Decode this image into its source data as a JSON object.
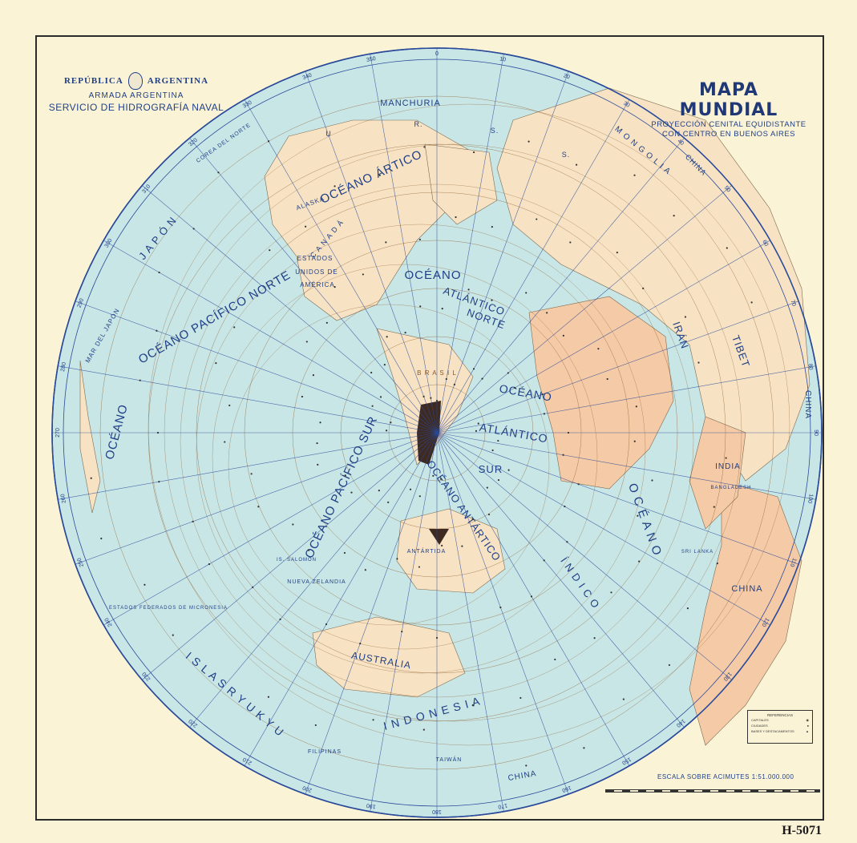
{
  "header": {
    "republica": "REPÚBLICA",
    "argentina": "ARGENTINA",
    "armada": "ARMADA ARGENTINA",
    "servicio": "SERVICIO DE HIDROGRAFÍA NAVAL"
  },
  "title": {
    "main": "MAPA MUNDIAL",
    "sub1": "PROYECCIÓN CENITAL EQUIDISTANTE",
    "sub2": "CON CENTRO EN BUENOS AIRES"
  },
  "bearings": [
    "0",
    "10",
    "20",
    "30",
    "40",
    "50",
    "60",
    "70",
    "80",
    "90",
    "100",
    "110",
    "120",
    "130",
    "140",
    "150",
    "160",
    "170",
    "180",
    "190",
    "200",
    "210",
    "220",
    "230",
    "240",
    "250",
    "260",
    "270",
    "280",
    "290",
    "300",
    "310",
    "320",
    "330",
    "340",
    "350"
  ],
  "map_labels": {
    "manchuria": "MANCHURIA",
    "urss_r": "R.",
    "urss_s1": "S.",
    "urss_s2": "S.",
    "urss_u": "U",
    "mongolia": "M O N G O L I A",
    "china_ne": "CHINA",
    "china_e": "CHINA",
    "china_se": "CHINA",
    "china_bottom": "CHINA",
    "oceano_artico": "OCÉANO ÁRTICO",
    "alaska": "ALASKA",
    "canada": "C A N A D Á",
    "estados": "ESTADOS",
    "unidos": "UNIDOS DE",
    "america": "AMÉRICA",
    "oceano_atl_n1": "OCÉANO",
    "oceano_atl_n2": "ATLÁNTICO",
    "oceano_atl_n3": "NORTE",
    "oceano_pac_norte": "OCÉANO PACÍFICO NORTE",
    "oceano_pac_norte_b": "NORTE",
    "japon": "J A P Ó N",
    "brasil": "B R A S I L",
    "oceano_atl_s1": "OCÉANO",
    "oceano_atl_s2": "ATLÁNTICO",
    "oceano_atl_s3": "SUR",
    "pacifico_sur": "OCÉANO PACÍFICO SUR",
    "oceano_pac_izq": "OCÉANO",
    "iran": "IRÁN",
    "tibet": "TIBET",
    "india": "INDIA",
    "bangladesh": "BANGLADESH",
    "sri_lanka": "SRI LANKA",
    "oceano_indico": "O C É A N O",
    "indico": "Í N D I C O",
    "oceano_antartico": "OCÉANO ANTÁRTICO",
    "antartida": "ANTÁRTIDA",
    "australia": "AUSTRALIA",
    "nueva_zelandia": "NUEVA ZELANDIA",
    "indonesia": "I N D O N E S I A",
    "islas_ryukyu": "I S L A S   R Y U K Y U",
    "filipinas": "FILIPINAS",
    "taiwan": "TAIWÁN",
    "estados_federados": "ESTADOS FEDERADOS DE MICRONESIA",
    "mar_del_japon": "MAR DEL JAPÓN",
    "corea_del_norte": "COREA DEL NORTE",
    "islas_salomon": "IS. SALOMÓN"
  },
  "legend": {
    "title": "REFERENCIAS",
    "row1": "CAPITALES",
    "row2": "CIUDADES",
    "row3": "BASES Y DESTACAMENTOS"
  },
  "scale": "ESCALA SOBRE ACIMUTES 1:51.000.000",
  "code": "H-5071",
  "colors": {
    "paper": "#fbf3d6",
    "ocean": "#c9e6e6",
    "land": "#f7e3c4",
    "land_peach": "#f5caa6",
    "grid_blue": "#2a4a9a",
    "grid_brown": "#8a5a2a",
    "argentina": "#3d2a22"
  }
}
